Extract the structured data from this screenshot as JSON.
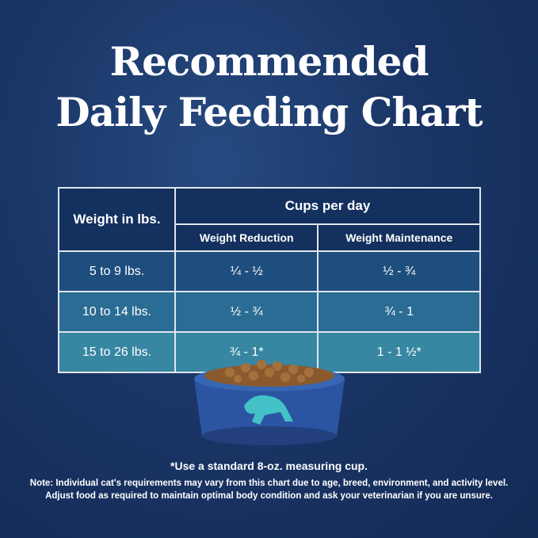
{
  "title_lines": [
    "Recommended",
    "Daily Feeding Chart"
  ],
  "table": {
    "header": {
      "weight": "Weight in lbs.",
      "cups": "Cups per day",
      "reduction": "Weight Reduction",
      "maintenance": "Weight Maintenance"
    },
    "rows": [
      [
        "5 to 9 lbs.",
        "¼ - ½",
        "½ - ¾"
      ],
      [
        "10 to 14 lbs.",
        "½ - ¾",
        "¾ - 1"
      ],
      [
        "15 to 26 lbs.",
        "¾ - 1*",
        "1 - 1 ½*"
      ]
    ]
  },
  "footnote": "*Use a standard 8-oz. measuring cup.",
  "note_lines": [
    "Note: Individual cat's requirements may vary from this chart due to age, breed, environment, and activity level.",
    "Adjust food as required to maintain optimal body condition and ask your veterinarian if you are unsure."
  ]
}
